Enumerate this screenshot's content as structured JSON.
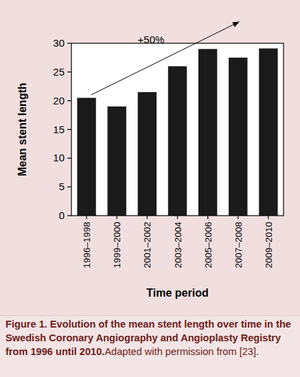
{
  "chart_data": {
    "type": "bar",
    "title": "Figure 1. Evolution of the mean stent length over time in the Swedish Coronary Angiography and Angioplasty Registry from 1996 until 2010.",
    "subtitle": "Adapted with permission from [23].",
    "x_label": "Time period",
    "y_label": "Mean stent length",
    "annotations": [
      "+50%"
    ],
    "categories": [
      "1996–1998",
      "1999–2000",
      "2001–2002",
      "2003–2004",
      "2005–2006",
      "2007–2008",
      "2009–2010"
    ],
    "values": [
      20.5,
      19,
      21.5,
      26,
      29,
      27.5,
      29.1
    ],
    "color": "#1a1a1a",
    "ylim": [
      0,
      30
    ],
    "yticks": [
      0,
      5,
      10,
      15,
      20,
      25,
      30
    ],
    "grid": false
  }
}
